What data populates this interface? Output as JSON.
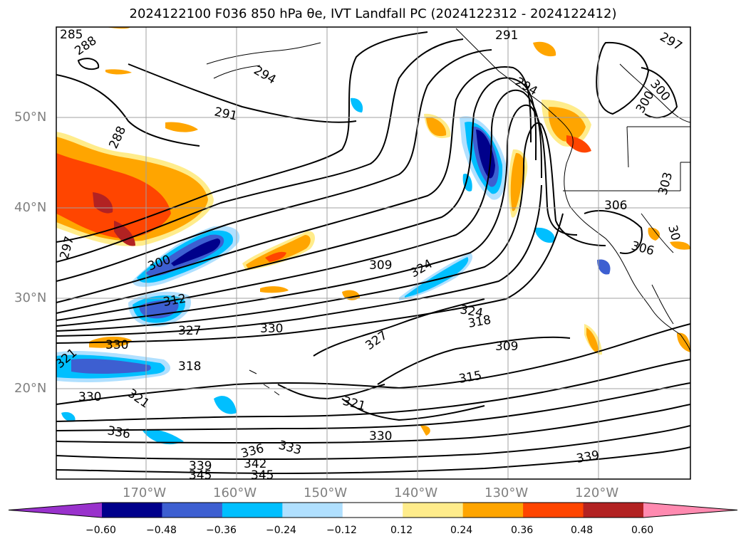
{
  "title": "2024122100 F036 850 hPa θe, IVT Landfall PC (2024122312 - 2024122412)",
  "map": {
    "lat_labels": [
      {
        "text": "50°N",
        "value": 50
      },
      {
        "text": "40°N",
        "value": 40
      },
      {
        "text": "30°N",
        "value": 30
      },
      {
        "text": "20°N",
        "value": 20
      }
    ],
    "lon_labels": [
      {
        "text": "170°W",
        "value": -170
      },
      {
        "text": "160°W",
        "value": -160
      },
      {
        "text": "150°W",
        "value": -150
      },
      {
        "text": "140°W",
        "value": -140
      },
      {
        "text": "130°W",
        "value": -130
      },
      {
        "text": "120°W",
        "value": -120
      }
    ],
    "contour_labels": [
      {
        "text": "285"
      },
      {
        "text": "288"
      },
      {
        "text": "294"
      },
      {
        "text": "291"
      },
      {
        "text": "288"
      },
      {
        "text": "297"
      },
      {
        "text": "300"
      },
      {
        "text": "312"
      },
      {
        "text": "327"
      },
      {
        "text": "330"
      },
      {
        "text": "330"
      },
      {
        "text": "321"
      },
      {
        "text": "318"
      },
      {
        "text": "330"
      },
      {
        "text": "321"
      },
      {
        "text": "336"
      },
      {
        "text": "339"
      },
      {
        "text": "345"
      },
      {
        "text": "336"
      },
      {
        "text": "342"
      },
      {
        "text": "345"
      },
      {
        "text": "333"
      },
      {
        "text": "309"
      },
      {
        "text": "324"
      },
      {
        "text": "327"
      },
      {
        "text": "321"
      },
      {
        "text": "330"
      },
      {
        "text": "291"
      },
      {
        "text": "294"
      },
      {
        "text": "297"
      },
      {
        "text": "300"
      },
      {
        "text": "300"
      },
      {
        "text": "303"
      },
      {
        "text": "306"
      },
      {
        "text": "306"
      },
      {
        "text": "30"
      },
      {
        "text": "324"
      },
      {
        "text": "318"
      },
      {
        "text": "309"
      },
      {
        "text": "315"
      },
      {
        "text": "339"
      }
    ]
  },
  "colorbar": {
    "ticks": [
      "−0.60",
      "−0.48",
      "−0.36",
      "−0.24",
      "−0.12",
      "0.12",
      "0.24",
      "0.36",
      "0.48",
      "0.60"
    ],
    "colors": [
      "#9932cc",
      "#00008b",
      "#3d5fd1",
      "#00bfff",
      "#b0e0ff",
      "#ffffff",
      "#ffec8b",
      "#ffa500",
      "#ff4500",
      "#b22222",
      "#ff8ab0"
    ]
  }
}
